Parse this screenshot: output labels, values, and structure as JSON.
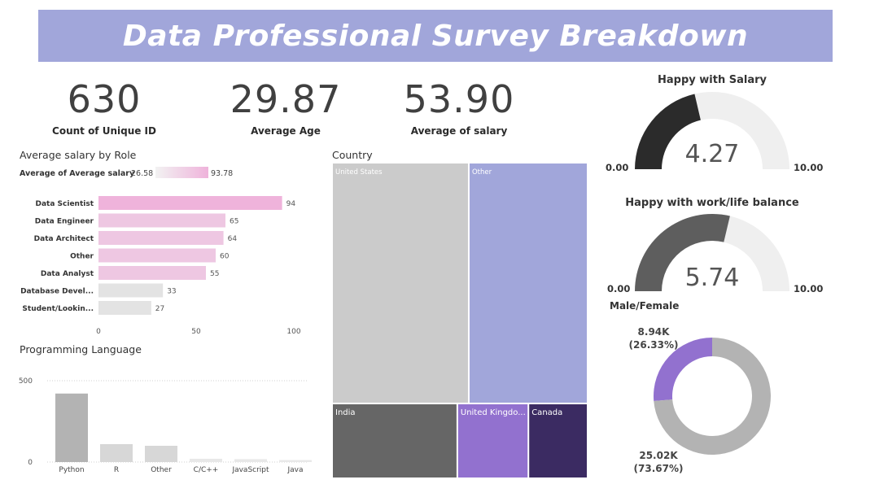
{
  "header": {
    "title": "Data Professional Survey Breakdown"
  },
  "kpis": [
    {
      "value": "630",
      "label": "Count of Unique ID"
    },
    {
      "value": "29.87",
      "label": "Average Age"
    },
    {
      "value": "53.90",
      "label": "Average of salary"
    }
  ],
  "salary_by_role": {
    "title": "Average salary by Role"
  },
  "programming": {
    "title": "Programming Language"
  },
  "country": {
    "title": "Country"
  },
  "gauges": {
    "salary": {
      "title": "Happy with Salary",
      "min": "0.00",
      "max": "10.00",
      "value_text": "4.27"
    },
    "worklife": {
      "title": "Happy with work/life balance",
      "min": "0.00",
      "max": "10.00",
      "value_text": "5.74"
    }
  },
  "gender": {
    "title": "Male/Female",
    "slice1_value": "8.94K",
    "slice1_pct": "(26.33%)",
    "slice2_value": "25.02K",
    "slice2_pct": "(73.67%)"
  },
  "colors": {
    "banner": "#a1a6da",
    "pink_strong": "#efb3db",
    "pink_light": "#eec7e2",
    "gray_light": "#e3e3e3",
    "treemap_us": "#cbcbcb",
    "treemap_other": "#a1a6da",
    "treemap_india": "#666666",
    "treemap_uk": "#9271cf",
    "treemap_canada": "#3b2b62",
    "gauge_dark1": "#2b2b2b",
    "gauge_dark2": "#5e5e5e",
    "gauge_bg": "#efefef",
    "donut_purple": "#9271cf",
    "donut_gray": "#b3b3b3"
  },
  "chart_data": [
    {
      "type": "bar",
      "orientation": "horizontal",
      "title": "Average salary by Role",
      "legend_title": "Average of Average salary",
      "legend_min": "26.58",
      "legend_max": "93.78",
      "categories": [
        "Data Scientist",
        "Data Engineer",
        "Data Architect",
        "Other",
        "Data Analyst",
        "Database Devel...",
        "Student/Lookin..."
      ],
      "values": [
        94,
        65,
        64,
        60,
        55,
        33,
        27
      ],
      "xlim": [
        0,
        100
      ],
      "xticks": [
        "0",
        "50",
        "100"
      ]
    },
    {
      "type": "bar",
      "title": "Programming Language",
      "categories": [
        "Python",
        "R",
        "Other",
        "C/C++",
        "JavaScript",
        "Java"
      ],
      "values": [
        421,
        110,
        100,
        20,
        18,
        12
      ],
      "ylim": [
        0,
        500
      ],
      "yticks": [
        "0",
        "500"
      ]
    },
    {
      "type": "treemap",
      "title": "Country",
      "categories": [
        "United States",
        "Other",
        "India",
        "United Kingdo...",
        "Canada"
      ],
      "values": [
        260,
        226,
        74,
        42,
        35
      ]
    },
    {
      "type": "gauge",
      "title": "Happy with Salary",
      "value": 4.27,
      "range": [
        0,
        10
      ]
    },
    {
      "type": "gauge",
      "title": "Happy with work/life balance",
      "value": 5.74,
      "range": [
        0,
        10
      ]
    },
    {
      "type": "pie",
      "donut": true,
      "title": "Male/Female",
      "values": [
        8.94,
        25.02
      ],
      "percents": [
        26.33,
        73.67
      ]
    }
  ]
}
